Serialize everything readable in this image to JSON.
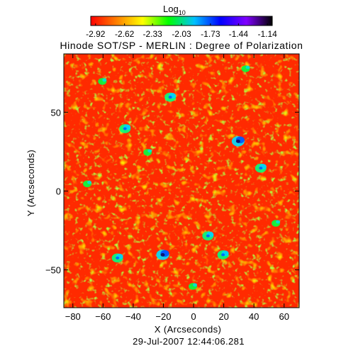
{
  "chart_data": {
    "type": "heatmap",
    "title": "Hinode SOT/SP - MERLIN : Degree of Polarization",
    "timestamp": "29-Jul-2007 12:44:06.281",
    "xlabel": "X (Arcseconds)",
    "ylabel": "Y (Arcseconds)",
    "xlim": [
      -86,
      70
    ],
    "ylim": [
      -74,
      87
    ],
    "xticks": [
      -80,
      -60,
      -40,
      -20,
      0,
      20,
      40,
      60
    ],
    "yticks": [
      -50,
      0,
      50
    ],
    "colorbar": {
      "label_base": "Log",
      "label_sub": "10",
      "ticks": [
        "-2.92",
        "-2.62",
        "-2.33",
        "-2.03",
        "-1.73",
        "-1.44",
        "-1.14"
      ],
      "range": [
        -2.97,
        -1.09
      ],
      "colors": [
        "#ff0000",
        "#ff8000",
        "#ffff00",
        "#00ff00",
        "#00c0ff",
        "#0000ff",
        "#8000ff",
        "#000000"
      ]
    },
    "dominant_color": "#ff2a00",
    "features": [
      {
        "x": -20,
        "y": -40,
        "level": "high"
      },
      {
        "x": 30,
        "y": 32,
        "level": "high"
      },
      {
        "x": 10,
        "y": -28,
        "level": "mid"
      },
      {
        "x": -50,
        "y": -42,
        "level": "mid"
      },
      {
        "x": -45,
        "y": 40,
        "level": "mid"
      },
      {
        "x": 45,
        "y": 15,
        "level": "mid"
      },
      {
        "x": -15,
        "y": 60,
        "level": "mid"
      },
      {
        "x": 20,
        "y": -40,
        "level": "mid"
      },
      {
        "x": -30,
        "y": 25,
        "level": "low"
      },
      {
        "x": 55,
        "y": -20,
        "level": "low"
      },
      {
        "x": -70,
        "y": 5,
        "level": "low"
      },
      {
        "x": 35,
        "y": 78,
        "level": "low"
      },
      {
        "x": -60,
        "y": 70,
        "level": "low"
      },
      {
        "x": 0,
        "y": -60,
        "level": "low"
      }
    ]
  }
}
